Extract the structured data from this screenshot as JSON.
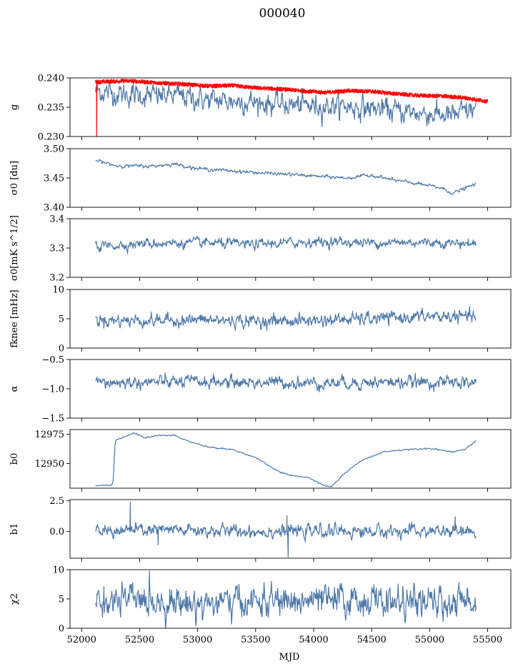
{
  "figure": {
    "title": "000040",
    "xlabel": "MJD"
  },
  "chart_data": [
    {
      "type": "line",
      "ylabel_html": "g",
      "xlim": [
        51900,
        55700
      ],
      "ylim": [
        0.23,
        0.24
      ],
      "yticks": [
        0.23,
        0.235,
        0.24
      ],
      "ytick_labels": [
        "0.230",
        "0.235",
        "0.240"
      ],
      "xticks": [
        52000,
        52500,
        53000,
        53500,
        54000,
        54500,
        55000,
        55500
      ],
      "xtick_labels": [],
      "series": [
        {
          "color": "#4c77a8",
          "style": "noisy",
          "noise": 0.0008,
          "x": [
            52120,
            52300,
            52600,
            52800,
            53100,
            53400,
            53700,
            54000,
            54200,
            54500,
            54800,
            55000,
            55200,
            55400
          ],
          "values": [
            0.2378,
            0.2373,
            0.2369,
            0.237,
            0.2362,
            0.236,
            0.2355,
            0.2352,
            0.2353,
            0.2348,
            0.2342,
            0.2339,
            0.2335,
            0.2348
          ]
        },
        {
          "color": "#ff0000",
          "style": "band",
          "noise": 0.00035,
          "x": [
            52120,
            52400,
            52700,
            52900,
            53100,
            53300,
            53500,
            53700,
            53900,
            54100,
            54300,
            54500,
            54700,
            54900,
            55100,
            55300,
            55500
          ],
          "values": [
            0.2393,
            0.2395,
            0.2391,
            0.2389,
            0.2386,
            0.2387,
            0.2383,
            0.2381,
            0.2378,
            0.2375,
            0.2378,
            0.2377,
            0.2373,
            0.237,
            0.2369,
            0.2366,
            0.236
          ],
          "spike": {
            "x": 52130,
            "to": 0.23
          }
        }
      ]
    },
    {
      "type": "line",
      "ylabel_html": "σ0 [du]",
      "xlim": [
        51900,
        55700
      ],
      "ylim": [
        3.4,
        3.5
      ],
      "yticks": [
        3.4,
        3.45,
        3.5
      ],
      "ytick_labels": [
        "3.40",
        "3.45",
        "3.50"
      ],
      "xticks": [
        52000,
        52500,
        53000,
        53500,
        54000,
        54500,
        55000,
        55500
      ],
      "xtick_labels": [],
      "series": [
        {
          "color": "#4c77a8",
          "style": "noisy",
          "noise": 0.0012,
          "x": [
            52120,
            52300,
            52600,
            52800,
            53000,
            53300,
            53600,
            53800,
            54100,
            54300,
            54500,
            54700,
            54900,
            55100,
            55200,
            55400
          ],
          "values": [
            3.48,
            3.471,
            3.47,
            3.474,
            3.466,
            3.462,
            3.458,
            3.456,
            3.452,
            3.45,
            3.455,
            3.446,
            3.44,
            3.433,
            3.424,
            3.44
          ]
        }
      ]
    },
    {
      "type": "line",
      "ylabel_html": "σ0[mK s^1/2]",
      "xlim": [
        51900,
        55700
      ],
      "ylim": [
        3.2,
        3.4
      ],
      "yticks": [
        3.2,
        3.3,
        3.4
      ],
      "ytick_labels": [
        "3.2",
        "3.3",
        "3.4"
      ],
      "xticks": [
        52000,
        52500,
        53000,
        53500,
        54000,
        54500,
        55000,
        55500
      ],
      "xtick_labels": [],
      "series": [
        {
          "color": "#4c77a8",
          "style": "noisy",
          "noise": 0.007,
          "x": [
            52120,
            52500,
            53000,
            53500,
            54000,
            54500,
            55000,
            55400
          ],
          "values": [
            3.305,
            3.315,
            3.318,
            3.312,
            3.322,
            3.318,
            3.32,
            3.315
          ]
        }
      ]
    },
    {
      "type": "line",
      "ylabel_html": "fknee [mHz]",
      "xlim": [
        51900,
        55700
      ],
      "ylim": [
        0,
        10
      ],
      "yticks": [
        0,
        5,
        10
      ],
      "ytick_labels": [
        "0",
        "5",
        "10"
      ],
      "xticks": [
        52000,
        52500,
        53000,
        53500,
        54000,
        54500,
        55000,
        55500
      ],
      "xtick_labels": [],
      "series": [
        {
          "color": "#4c77a8",
          "style": "noisy",
          "noise": 0.45,
          "x": [
            52120,
            52500,
            53000,
            53500,
            54000,
            54500,
            55000,
            55400
          ],
          "values": [
            4.8,
            4.7,
            4.8,
            4.6,
            4.7,
            5.0,
            5.4,
            5.3
          ]
        }
      ]
    },
    {
      "type": "line",
      "ylabel_html": "α",
      "xlim": [
        51900,
        55700
      ],
      "ylim": [
        -1.5,
        -0.5
      ],
      "yticks": [
        -1.5,
        -1.0,
        -0.5
      ],
      "ytick_labels": [
        "−1.5",
        "−1.0",
        "−0.5"
      ],
      "xticks": [
        52000,
        52500,
        53000,
        53500,
        54000,
        54500,
        55000,
        55500
      ],
      "xtick_labels": [],
      "series": [
        {
          "color": "#4c77a8",
          "style": "noisy",
          "noise": 0.045,
          "x": [
            52120,
            52500,
            53000,
            53500,
            54000,
            54500,
            55000,
            55400
          ],
          "values": [
            -0.9,
            -0.89,
            -0.88,
            -0.89,
            -0.9,
            -0.89,
            -0.89,
            -0.9
          ]
        }
      ]
    },
    {
      "type": "line",
      "ylabel_html": "b0",
      "xlim": [
        51900,
        55700
      ],
      "ylim": [
        12929,
        12979
      ],
      "yticks": [
        12950,
        12975
      ],
      "ytick_labels": [
        "12950",
        "12975"
      ],
      "xticks": [
        52000,
        52500,
        53000,
        53500,
        54000,
        54500,
        55000,
        55500
      ],
      "xtick_labels": [],
      "series": [
        {
          "color": "#4c77a8",
          "style": "smooth",
          "noise": 0.3,
          "x": [
            52120,
            52200,
            52270,
            52290,
            52350,
            52450,
            52550,
            52650,
            52800,
            52950,
            53100,
            53300,
            53500,
            53700,
            53800,
            53950,
            54100,
            54150,
            54250,
            54400,
            54600,
            54800,
            55000,
            55200,
            55300,
            55400
          ],
          "values": [
            12931,
            12931.5,
            12932,
            12970,
            12972,
            12976,
            12972,
            12974,
            12974,
            12968,
            12964,
            12962,
            12955,
            12943,
            12940,
            12938,
            12931,
            12930,
            12940,
            12952,
            12960,
            12962,
            12963,
            12960,
            12962,
            12969
          ]
        }
      ]
    },
    {
      "type": "line",
      "ylabel_html": "b1",
      "xlim": [
        51900,
        55700
      ],
      "ylim": [
        -2.2,
        2.6
      ],
      "yticks": [
        0.0,
        2.5
      ],
      "ytick_labels": [
        "0.0",
        "2.5"
      ],
      "xticks": [
        52000,
        52500,
        53000,
        53500,
        54000,
        54500,
        55000,
        55500
      ],
      "xtick_labels": [],
      "series": [
        {
          "color": "#4c77a8",
          "style": "noisy",
          "noise": 0.22,
          "x": [
            52120,
            52500,
            53000,
            53500,
            54000,
            54500,
            55000,
            55400
          ],
          "values": [
            0.0,
            0.1,
            0.05,
            0.0,
            0.0,
            0.0,
            0.0,
            -0.1
          ],
          "extra_spikes": [
            {
              "x": 52420,
              "to": 2.4
            },
            {
              "x": 53780,
              "to": -2.1
            },
            {
              "x": 53770,
              "to": 1.3
            },
            {
              "x": 52660,
              "to": -1.1
            },
            {
              "x": 55220,
              "to": 1.2
            }
          ]
        }
      ]
    },
    {
      "type": "line",
      "ylabel_html": "χ2",
      "xlim": [
        51900,
        55700
      ],
      "ylim": [
        0,
        10
      ],
      "yticks": [
        0,
        5,
        10
      ],
      "ytick_labels": [
        "0",
        "5",
        "10"
      ],
      "xticks": [
        52000,
        52500,
        53000,
        53500,
        54000,
        54500,
        55000,
        55500
      ],
      "xtick_labels": [
        "52000",
        "52500",
        "53000",
        "53500",
        "54000",
        "54500",
        "55000",
        "55500"
      ],
      "series": [
        {
          "color": "#4c77a8",
          "style": "noisy",
          "noise": 1.1,
          "x": [
            52120,
            52500,
            53000,
            53500,
            54000,
            54500,
            55000,
            55400
          ],
          "values": [
            4.5,
            4.8,
            4.2,
            4.5,
            4.6,
            4.7,
            4.2,
            4.6
          ]
        }
      ]
    }
  ]
}
